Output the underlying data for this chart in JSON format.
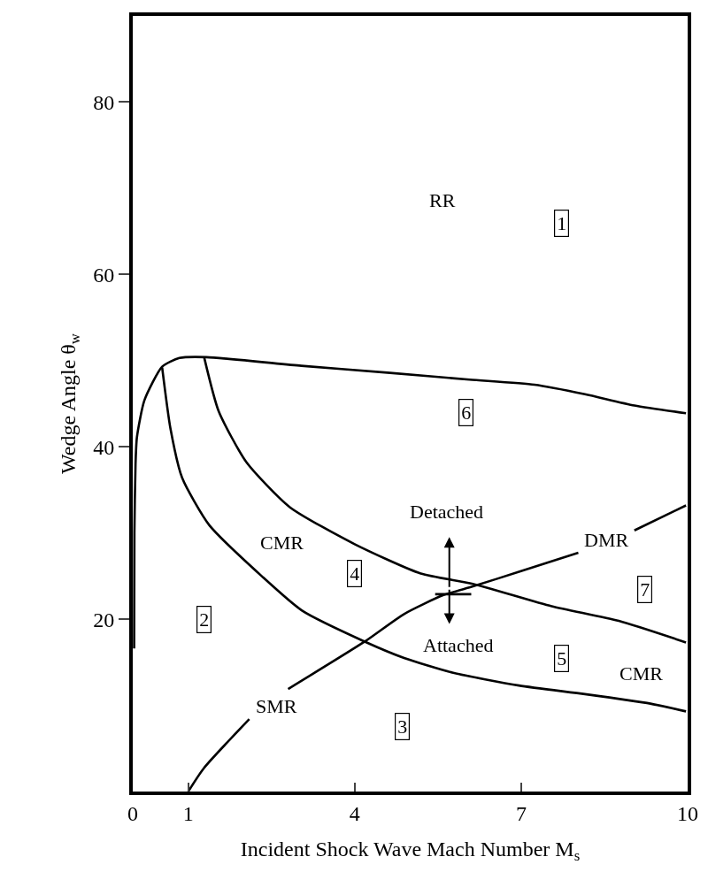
{
  "chart_data": {
    "type": "line",
    "xlabel": "Incident Shock Wave Mach Number M$_{s}$",
    "ylabel": "Wedge Angle θ$_{w}$",
    "xlim": [
      0,
      10
    ],
    "xticks": [
      0,
      1,
      4,
      7,
      10
    ],
    "ylim": [
      0,
      90
    ],
    "yticks": [
      20,
      40,
      60,
      80
    ],
    "grid": false,
    "marker": "none",
    "line_style": "solid",
    "series": [
      {
        "color": "#000000",
        "x": [
          0.025,
          0.03,
          0.05,
          0.075,
          0.21,
          0.53,
          0.84,
          1.33,
          3.04,
          4.59,
          6.07,
          7.24,
          8.15,
          9.04,
          9.97
        ],
        "values": [
          16.6,
          30,
          38,
          41.1,
          45.4,
          49.3,
          50.3,
          50.4,
          49.4,
          48.6,
          47.8,
          47.2,
          46.1,
          44.8,
          43.9
        ]
      },
      {
        "color": "#000000",
        "x": [
          0.53,
          0.68,
          0.89,
          1.38,
          2.34,
          3.05,
          4.18,
          4.89,
          5.76,
          6.96,
          8.15,
          9.33,
          9.97
        ],
        "values": [
          49.2,
          42.1,
          36.4,
          30.9,
          24.9,
          21.0,
          17.4,
          15.5,
          13.8,
          12.3,
          11.3,
          10.2,
          9.3
        ]
      },
      {
        "color": "#000000",
        "x": [
          1.29,
          1.55,
          2.05,
          2.83,
          4.0,
          5.19,
          6.13,
          7.55,
          8.76,
          9.97
        ],
        "values": [
          50.3,
          44.1,
          38.2,
          33.0,
          28.7,
          25.3,
          24.1,
          21.5,
          19.8,
          17.3
        ]
      },
      {
        "color": "#000000",
        "x": [
          5.45,
          6.1
        ],
        "values": [
          22.9,
          22.9
        ]
      },
      {
        "color": "#000000",
        "x": [
          1.0,
          1.28,
          2.1,
          2.45,
          2.8,
          4.18,
          4.89,
          5.6,
          6.13,
          6.96,
          8.03,
          8.5,
          9.04,
          9.97
        ],
        "values": [
          0,
          2.7,
          8.4,
          null,
          11.9,
          17.4,
          20.6,
          22.8,
          23.8,
          25.5,
          27.7,
          null,
          30.3,
          33.2
        ]
      }
    ],
    "annotations": [
      "RR",
      "1",
      "6",
      "CMR",
      "4",
      "Detached",
      "Attached",
      "DMR",
      "7",
      "2",
      "5",
      "CMR",
      "SMR",
      "3"
    ]
  }
}
